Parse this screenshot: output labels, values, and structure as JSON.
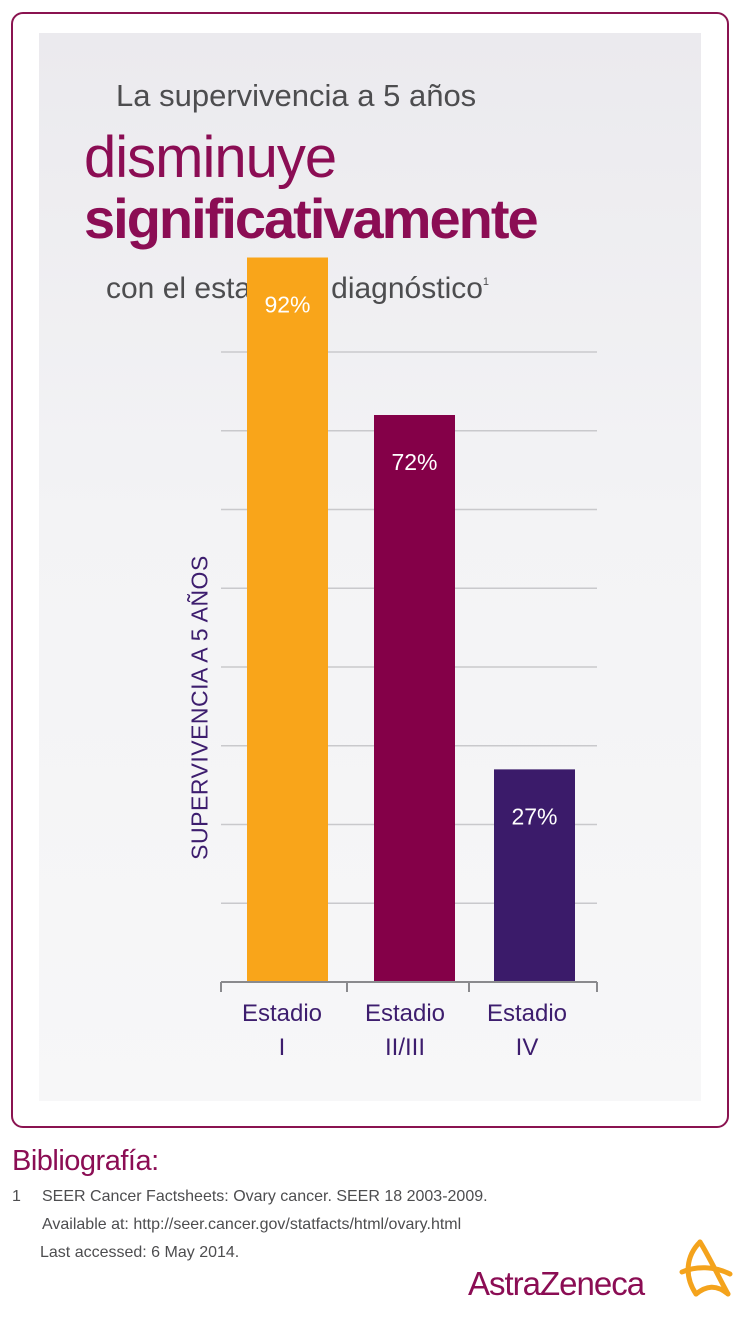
{
  "title": {
    "line1": "La supervivencia a 5 años",
    "line2": "disminuye",
    "line3": "significativamente",
    "line4": "con el estadio al diagnóstico",
    "footnote_mark": "1"
  },
  "chart_data": {
    "type": "bar",
    "ylabel": "SUPERVIVENCIA A 5 AÑOS",
    "xlabel": "",
    "ylim": [
      0,
      100
    ],
    "grid": true,
    "categories": [
      {
        "line1": "Estadio",
        "line2": "I"
      },
      {
        "line1": "Estadio",
        "line2": "II/III"
      },
      {
        "line1": "Estadio",
        "line2": "IV"
      }
    ],
    "values": [
      92,
      72,
      27
    ],
    "data_labels": [
      "92%",
      "72%",
      "27%"
    ],
    "colors": [
      "#f9a51a",
      "#840048",
      "#3b1b6a"
    ]
  },
  "bibliography": {
    "title": "Bibliografía:",
    "refs": [
      {
        "number": "1",
        "line1": "SEER Cancer Factsheets: Ovary cancer. SEER 18 2003-2009.",
        "line2": "Available at: http://seer.cancer.gov/statfacts/html/ovary.html",
        "line3": "Last accessed: 6 May 2014."
      }
    ]
  },
  "logo": {
    "text": "AstraZeneca",
    "color": "#8b0d54",
    "mark_color": "#f4a31c"
  }
}
